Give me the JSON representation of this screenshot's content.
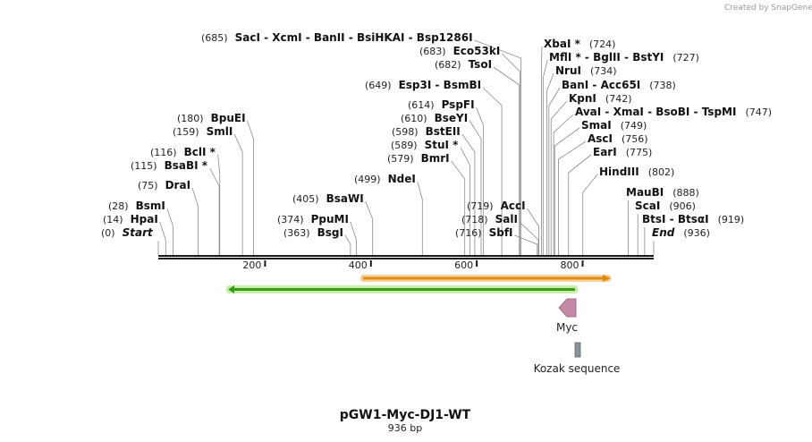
{
  "title": "pGW1-Myc-DJ1-WT",
  "length_label": "936 bp",
  "credit": "Created by SnapGene",
  "sequence_length": 936,
  "ticks": [
    200,
    400,
    600,
    800
  ],
  "features": {
    "myc": "Myc",
    "kozak": "Kozak sequence"
  },
  "sites": [
    {
      "pos": "(0)",
      "name": "Start",
      "bp": 0,
      "italic": true
    },
    {
      "pos": "(14)",
      "name": "HpaI",
      "bp": 14
    },
    {
      "pos": "(28)",
      "name": "BsmI",
      "bp": 28
    },
    {
      "pos": "(75)",
      "name": "DraI",
      "bp": 75
    },
    {
      "pos": "(115)",
      "name": "BsaBI *",
      "bp": 115
    },
    {
      "pos": "(116)",
      "name": "BclI *",
      "bp": 116
    },
    {
      "pos": "(159)",
      "name": "SmlI",
      "bp": 159
    },
    {
      "pos": "(180)",
      "name": "BpuEI",
      "bp": 180
    },
    {
      "pos": "(363)",
      "name": "BsgI",
      "bp": 363
    },
    {
      "pos": "(374)",
      "name": "PpuMI",
      "bp": 374
    },
    {
      "pos": "(405)",
      "name": "BsaWI",
      "bp": 405
    },
    {
      "pos": "(499)",
      "name": "NdeI",
      "bp": 499
    },
    {
      "pos": "(579)",
      "name": "BmrI",
      "bp": 579
    },
    {
      "pos": "(589)",
      "name": "StuI *",
      "bp": 589
    },
    {
      "pos": "(598)",
      "name": "BstEII",
      "bp": 598
    },
    {
      "pos": "(610)",
      "name": "BseYI",
      "bp": 610
    },
    {
      "pos": "(614)",
      "name": "PspFI",
      "bp": 614
    },
    {
      "pos": "(649)",
      "name": "Esp3I  - BsmBI",
      "bp": 649
    },
    {
      "pos": "(682)",
      "name": "TsoI",
      "bp": 682
    },
    {
      "pos": "(683)",
      "name": "Eco53kI",
      "bp": 683
    },
    {
      "pos": "(685)",
      "name": "SacI  - XcmI  - BanII  - BsiHKAI  - Bsp1286I",
      "bp": 685
    },
    {
      "pos": "(716)",
      "name": "SbfI",
      "bp": 716
    },
    {
      "pos": "(718)",
      "name": "SalI",
      "bp": 718
    },
    {
      "pos": "(719)",
      "name": "AccI",
      "bp": 719
    },
    {
      "pos": "(724)",
      "name": "XbaI *",
      "bp": 724
    },
    {
      "pos": "(727)",
      "name": "MflI *  - BglII  - BstYI",
      "bp": 727
    },
    {
      "pos": "(734)",
      "name": "NruI",
      "bp": 734
    },
    {
      "pos": "(738)",
      "name": "BanI  - Acc65I",
      "bp": 738
    },
    {
      "pos": "(742)",
      "name": "KpnI",
      "bp": 742
    },
    {
      "pos": "(747)",
      "name": "AvaI  - XmaI  - BsoBI  - TspMI",
      "bp": 747
    },
    {
      "pos": "(749)",
      "name": "SmaI",
      "bp": 749
    },
    {
      "pos": "(756)",
      "name": "AscI",
      "bp": 756
    },
    {
      "pos": "(775)",
      "name": "EarI",
      "bp": 775
    },
    {
      "pos": "(802)",
      "name": "HindIII",
      "bp": 802
    },
    {
      "pos": "(888)",
      "name": "MauBI",
      "bp": 888
    },
    {
      "pos": "(906)",
      "name": "ScaI",
      "bp": 906
    },
    {
      "pos": "(919)",
      "name": "BtsI  - BtsαI",
      "bp": 919
    },
    {
      "pos": "(936)",
      "name": "End",
      "bp": 936,
      "italic": true
    }
  ],
  "colors": {
    "backbone": "#1a1a1a",
    "green_arrow": "#3a9a1a",
    "green_glow": "#c8efaa",
    "orange_arrow": "#e08a10",
    "orange_glow": "#f6d29a",
    "myc": "#c48aa6",
    "kozak": "#8a929a"
  }
}
